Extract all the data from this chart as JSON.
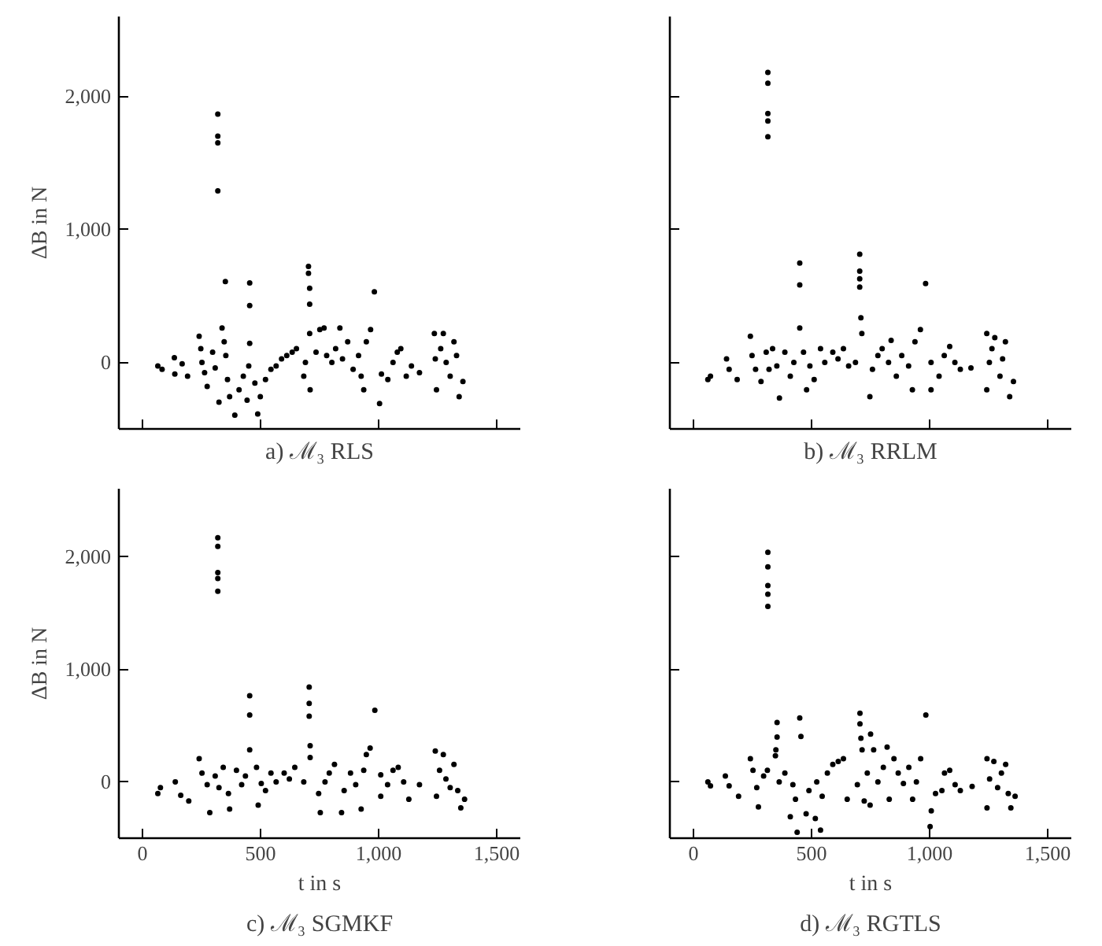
{
  "chart_data": [
    {
      "type": "scatter",
      "title": "a) ℳ₃ RLS",
      "ylabel": "ΔB in N",
      "tick_labels": "y",
      "marker": "circle",
      "color": "#000000",
      "xlim": [
        -100,
        1600
      ],
      "ylim": [
        -500,
        2600
      ],
      "xticks": [
        {
          "value": 0,
          "label": null
        },
        {
          "value": 500,
          "label": null
        },
        {
          "value": 1000,
          "label": null
        },
        {
          "value": 1500,
          "label": null
        }
      ],
      "yticks": [
        {
          "value": 0,
          "label": "0"
        },
        {
          "value": 1000,
          "label": "1,000"
        },
        {
          "value": 2000,
          "label": "2,000"
        }
      ],
      "x": [
        319,
        319,
        319,
        319,
        351,
        454,
        454,
        454,
        703,
        703,
        708,
        708,
        708,
        982,
        710,
        65,
        83,
        135,
        137,
        168,
        191,
        240,
        247,
        252,
        263,
        274,
        297,
        308,
        324,
        337,
        346,
        353,
        360,
        369,
        391,
        409,
        427,
        443,
        450,
        476,
        488,
        499,
        521,
        544,
        566,
        589,
        611,
        634,
        652,
        683,
        690,
        735,
        751,
        769,
        780,
        802,
        818,
        836,
        847,
        869,
        892,
        915,
        926,
        937,
        948,
        966,
        1004,
        1012,
        1039,
        1061,
        1079,
        1094,
        1117,
        1139,
        1173,
        1236,
        1240,
        1245,
        1263,
        1274,
        1286,
        1303,
        1319,
        1330,
        1341,
        1357
      ],
      "values": [
        1866,
        1701,
        1650,
        1289,
        608,
        598,
        428,
        144,
        722,
        670,
        557,
        438,
        217,
        531,
        -206,
        -26,
        -52,
        36,
        -88,
        -10,
        -103,
        196,
        103,
        0,
        -77,
        -180,
        77,
        -41,
        -299,
        258,
        155,
        52,
        -129,
        -258,
        -397,
        -206,
        -103,
        -284,
        -26,
        -155,
        -387,
        -258,
        -129,
        -52,
        -26,
        26,
        52,
        77,
        103,
        -103,
        0,
        77,
        247,
        258,
        52,
        0,
        103,
        258,
        26,
        155,
        -52,
        52,
        -103,
        -206,
        155,
        247,
        -309,
        -88,
        -129,
        0,
        77,
        103,
        -103,
        -26,
        -77,
        217,
        26,
        -206,
        103,
        217,
        0,
        -103,
        155,
        52,
        -258,
        -144
      ]
    },
    {
      "type": "scatter",
      "title": "b) ℳ₃ RRLM",
      "tick_labels": false,
      "marker": "circle",
      "color": "#000000",
      "xlim": [
        -100,
        1600
      ],
      "ylim": [
        -500,
        2600
      ],
      "xticks": [
        {
          "value": 0,
          "label": null
        },
        {
          "value": 500,
          "label": null
        },
        {
          "value": 1000,
          "label": null
        },
        {
          "value": 1500,
          "label": null
        }
      ],
      "yticks": [
        {
          "value": 0,
          "label": null
        },
        {
          "value": 1000,
          "label": null
        },
        {
          "value": 2000,
          "label": null
        }
      ],
      "x": [
        315,
        315,
        315,
        315,
        315,
        450,
        450,
        450,
        704,
        704,
        704,
        704,
        709,
        713,
        983,
        61,
        72,
        140,
        151,
        185,
        241,
        248,
        263,
        286,
        308,
        320,
        335,
        353,
        364,
        387,
        410,
        425,
        466,
        479,
        493,
        511,
        538,
        556,
        590,
        612,
        635,
        657,
        686,
        747,
        758,
        781,
        799,
        826,
        837,
        859,
        882,
        911,
        927,
        938,
        961,
        1006,
        1006,
        1040,
        1062,
        1085,
        1107,
        1130,
        1175,
        1242,
        1253,
        1242,
        1264,
        1276,
        1298,
        1309,
        1321,
        1339,
        1355
      ],
      "values": [
        2180,
        2098,
        1871,
        1814,
        1696,
        747,
        582,
        258,
        814,
        686,
        629,
        567,
        335,
        217,
        593,
        -129,
        -103,
        26,
        -52,
        -129,
        196,
        52,
        -52,
        -144,
        77,
        -52,
        103,
        -26,
        -268,
        77,
        -103,
        0,
        77,
        -206,
        -26,
        -129,
        103,
        0,
        77,
        26,
        103,
        -26,
        0,
        -258,
        -52,
        52,
        103,
        0,
        165,
        -103,
        52,
        -26,
        -206,
        155,
        247,
        0,
        -206,
        -103,
        52,
        119,
        0,
        -52,
        -41,
        217,
        0,
        -206,
        103,
        186,
        -103,
        26,
        155,
        -258,
        -144
      ]
    },
    {
      "type": "scatter",
      "title": "c) ℳ₃ SGMKF",
      "xlabel": "t in s",
      "ylabel": "ΔB in N",
      "marker": "circle",
      "color": "#000000",
      "xlim": [
        -100,
        1600
      ],
      "ylim": [
        -500,
        2600
      ],
      "xticks": [
        {
          "value": 0,
          "label": "0"
        },
        {
          "value": 500,
          "label": "500"
        },
        {
          "value": 1000,
          "label": "1,000"
        },
        {
          "value": 1500,
          "label": "1,500"
        }
      ],
      "yticks": [
        {
          "value": 0,
          "label": "0"
        },
        {
          "value": 1000,
          "label": "1,000"
        },
        {
          "value": 2000,
          "label": "2,000"
        }
      ],
      "x": [
        319,
        319,
        319,
        319,
        319,
        454,
        454,
        454,
        706,
        706,
        706,
        710,
        710,
        984,
        65,
        76,
        139,
        162,
        196,
        240,
        252,
        274,
        285,
        308,
        324,
        342,
        364,
        369,
        398,
        420,
        436,
        483,
        490,
        503,
        521,
        544,
        566,
        600,
        622,
        645,
        683,
        746,
        753,
        773,
        791,
        813,
        843,
        854,
        881,
        903,
        926,
        937,
        948,
        964,
        1009,
        1009,
        1038,
        1061,
        1083,
        1106,
        1128,
        1173,
        1240,
        1245,
        1258,
        1274,
        1285,
        1303,
        1319,
        1335,
        1348,
        1364
      ],
      "values": [
        2165,
        2088,
        1856,
        1804,
        1691,
        763,
        593,
        284,
        840,
        696,
        583,
        320,
        216,
        634,
        -103,
        -52,
        0,
        -119,
        -170,
        206,
        77,
        -26,
        -273,
        52,
        -52,
        129,
        -103,
        -242,
        103,
        -26,
        52,
        129,
        -206,
        -15,
        -77,
        77,
        0,
        77,
        26,
        129,
        0,
        -103,
        -273,
        0,
        77,
        155,
        -273,
        -77,
        77,
        -26,
        -242,
        103,
        242,
        299,
        62,
        -129,
        -26,
        103,
        129,
        0,
        -155,
        -26,
        273,
        -129,
        103,
        242,
        26,
        -52,
        155,
        -77,
        -232,
        -155
      ]
    },
    {
      "type": "scatter",
      "title": "d) ℳ₃ RGTLS",
      "xlabel": "t in s",
      "tick_labels": "x",
      "marker": "circle",
      "color": "#000000",
      "xlim": [
        -100,
        1600
      ],
      "ylim": [
        -500,
        2600
      ],
      "xticks": [
        {
          "value": 0,
          "label": "0"
        },
        {
          "value": 500,
          "label": "500"
        },
        {
          "value": 1000,
          "label": "1,000"
        },
        {
          "value": 1500,
          "label": "1,500"
        }
      ],
      "yticks": [
        {
          "value": 0,
          "label": null
        },
        {
          "value": 1000,
          "label": null
        },
        {
          "value": 2000,
          "label": null
        }
      ],
      "x": [
        315,
        315,
        315,
        315,
        315,
        354,
        354,
        349,
        450,
        455,
        705,
        705,
        709,
        714,
        750,
        984,
        439,
        538,
        1002,
        61,
        72,
        135,
        151,
        191,
        241,
        252,
        268,
        275,
        297,
        313,
        347,
        363,
        387,
        410,
        421,
        432,
        477,
        489,
        516,
        522,
        545,
        567,
        590,
        613,
        635,
        651,
        694,
        723,
        736,
        748,
        763,
        781,
        804,
        820,
        829,
        849,
        867,
        889,
        912,
        928,
        944,
        962,
        1007,
        1025,
        1052,
        1063,
        1085,
        1108,
        1130,
        1180,
        1243,
        1243,
        1254,
        1272,
        1288,
        1304,
        1322,
        1333,
        1344,
        1362
      ],
      "values": [
        2036,
        1907,
        1742,
        1665,
        1557,
        526,
        397,
        284,
        567,
        402,
        608,
        515,
        387,
        284,
        423,
        593,
        -448,
        -428,
        -397,
        0,
        -36,
        52,
        -36,
        -129,
        206,
        103,
        -52,
        -222,
        52,
        103,
        232,
        0,
        77,
        -309,
        -26,
        -155,
        -284,
        -77,
        -325,
        0,
        -129,
        77,
        155,
        180,
        206,
        -155,
        -26,
        -170,
        77,
        -206,
        284,
        0,
        129,
        309,
        -155,
        206,
        77,
        -15,
        129,
        -155,
        0,
        206,
        -258,
        -103,
        -77,
        77,
        103,
        -26,
        -77,
        -41,
        206,
        -232,
        26,
        180,
        -52,
        77,
        155,
        -103,
        -232,
        -129
      ]
    }
  ]
}
